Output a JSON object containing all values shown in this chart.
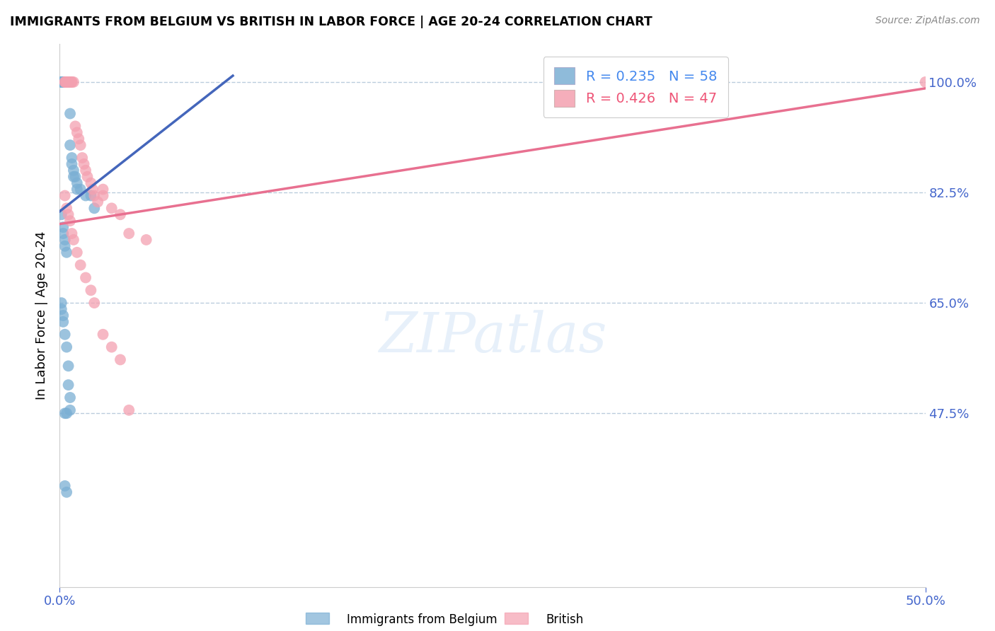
{
  "title": "IMMIGRANTS FROM BELGIUM VS BRITISH IN LABOR FORCE | AGE 20-24 CORRELATION CHART",
  "source": "Source: ZipAtlas.com",
  "ylabel": "In Labor Force | Age 20-24",
  "xlim": [
    0.0,
    0.5
  ],
  "ylim": [
    0.2,
    1.06
  ],
  "ytick_positions": [
    0.475,
    0.65,
    0.825,
    1.0
  ],
  "ytick_labels": [
    "47.5%",
    "65.0%",
    "82.5%",
    "100.0%"
  ],
  "xtick_positions": [
    0.0,
    0.5
  ],
  "xtick_labels": [
    "0.0%",
    "50.0%"
  ],
  "legend_blue_r": 0.235,
  "legend_blue_n": 58,
  "legend_pink_r": 0.426,
  "legend_pink_n": 47,
  "watermark": "ZIPatlas",
  "blue_color": "#7BAFD4",
  "pink_color": "#F4A0B0",
  "blue_line_color": "#4466BB",
  "pink_line_color": "#E87090",
  "blue_trend_x": [
    0.0,
    0.1
  ],
  "blue_trend_y": [
    0.795,
    1.01
  ],
  "pink_trend_x": [
    0.0,
    0.5
  ],
  "pink_trend_y": [
    0.775,
    0.99
  ],
  "blue_x": [
    0.001,
    0.001,
    0.001,
    0.002,
    0.002,
    0.002,
    0.002,
    0.002,
    0.002,
    0.003,
    0.003,
    0.003,
    0.003,
    0.003,
    0.003,
    0.003,
    0.003,
    0.004,
    0.004,
    0.004,
    0.004,
    0.004,
    0.005,
    0.005,
    0.005,
    0.006,
    0.006,
    0.007,
    0.007,
    0.008,
    0.008,
    0.009,
    0.01,
    0.01,
    0.012,
    0.015,
    0.018,
    0.02,
    0.001,
    0.002,
    0.002,
    0.003,
    0.003,
    0.004,
    0.001,
    0.001,
    0.002,
    0.002,
    0.003,
    0.004,
    0.003,
    0.004,
    0.003,
    0.004,
    0.005,
    0.005,
    0.006,
    0.006
  ],
  "blue_y": [
    1.0,
    1.0,
    1.0,
    1.0,
    1.0,
    1.0,
    1.0,
    1.0,
    1.0,
    1.0,
    1.0,
    1.0,
    1.0,
    1.0,
    1.0,
    1.0,
    1.0,
    1.0,
    1.0,
    1.0,
    1.0,
    1.0,
    1.0,
    1.0,
    1.0,
    0.95,
    0.9,
    0.88,
    0.87,
    0.86,
    0.85,
    0.85,
    0.84,
    0.83,
    0.83,
    0.82,
    0.82,
    0.8,
    0.79,
    0.77,
    0.76,
    0.75,
    0.74,
    0.73,
    0.65,
    0.64,
    0.63,
    0.62,
    0.6,
    0.58,
    0.475,
    0.475,
    0.36,
    0.35,
    0.55,
    0.52,
    0.5,
    0.48
  ],
  "pink_x": [
    0.003,
    0.003,
    0.004,
    0.004,
    0.004,
    0.005,
    0.005,
    0.005,
    0.006,
    0.006,
    0.007,
    0.007,
    0.008,
    0.009,
    0.01,
    0.011,
    0.012,
    0.013,
    0.014,
    0.015,
    0.016,
    0.018,
    0.019,
    0.02,
    0.022,
    0.025,
    0.025,
    0.03,
    0.035,
    0.04,
    0.05,
    0.003,
    0.004,
    0.005,
    0.006,
    0.007,
    0.008,
    0.01,
    0.012,
    0.015,
    0.018,
    0.02,
    0.025,
    0.03,
    0.035,
    0.04,
    0.5
  ],
  "pink_y": [
    1.0,
    1.0,
    1.0,
    1.0,
    1.0,
    1.0,
    1.0,
    1.0,
    1.0,
    1.0,
    1.0,
    1.0,
    1.0,
    0.93,
    0.92,
    0.91,
    0.9,
    0.88,
    0.87,
    0.86,
    0.85,
    0.84,
    0.83,
    0.82,
    0.81,
    0.83,
    0.82,
    0.8,
    0.79,
    0.76,
    0.75,
    0.82,
    0.8,
    0.79,
    0.78,
    0.76,
    0.75,
    0.73,
    0.71,
    0.69,
    0.67,
    0.65,
    0.6,
    0.58,
    0.56,
    0.48,
    1.0
  ]
}
